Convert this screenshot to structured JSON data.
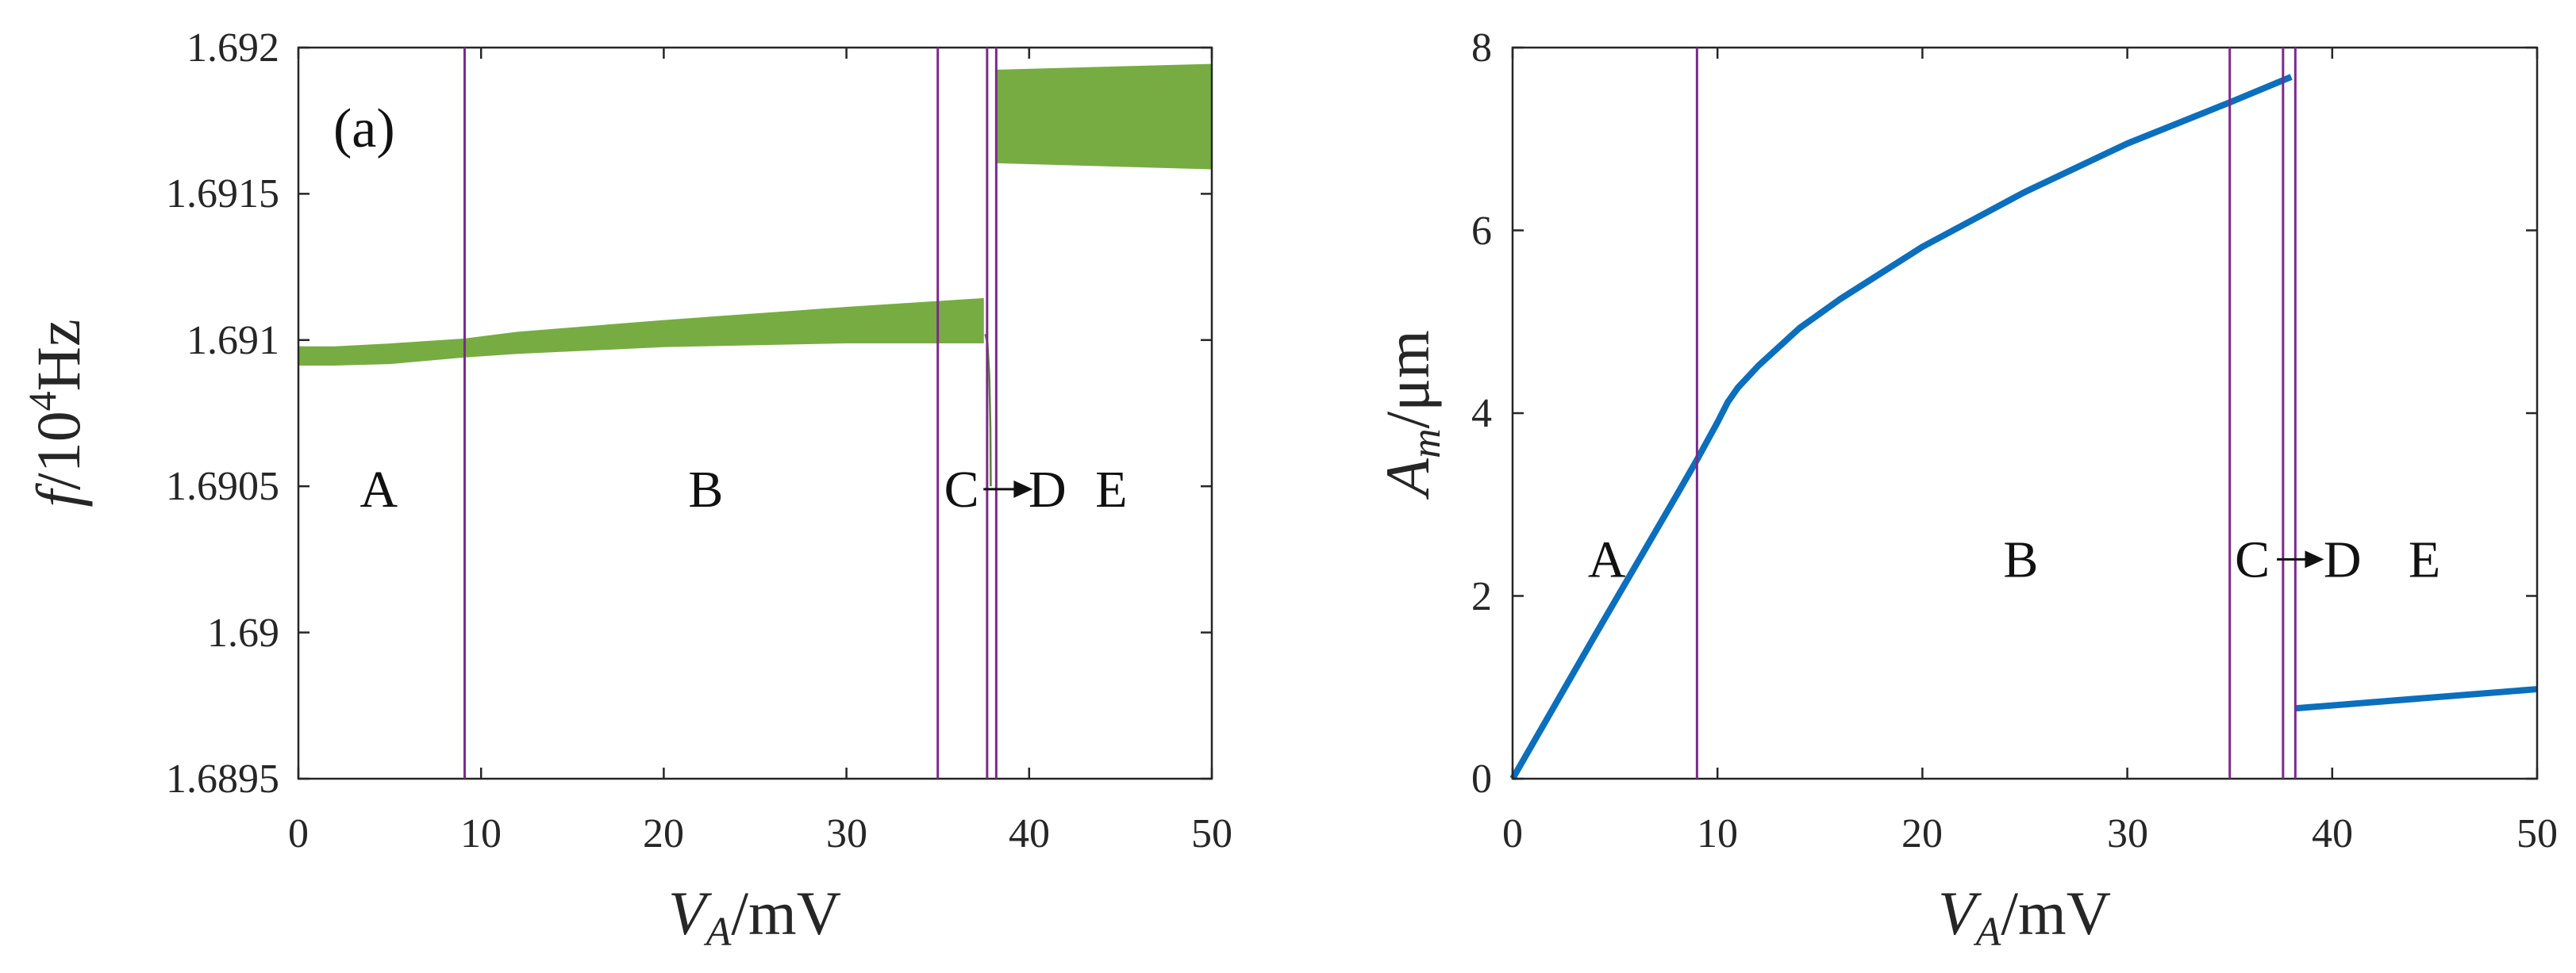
{
  "colors": {
    "band": "#77ac42",
    "curve": "#0b6fbd",
    "boundary": "#7b2a8c",
    "axis": "#262626"
  },
  "chart_data": [
    {
      "type": "area",
      "panel_label": "(a)",
      "xlabel_main": "V",
      "xlabel_sub": "A",
      "xlabel_unit": "/mV",
      "ylabel_main": "f",
      "ylabel_unit": "/10",
      "ylabel_exp": "4",
      "ylabel_tail": "Hz",
      "xlim": [
        0,
        50
      ],
      "ylim": [
        1.6895,
        1.692
      ],
      "xticks": [
        0,
        10,
        20,
        30,
        40,
        50
      ],
      "xtick_labels": [
        "0",
        "10",
        "20",
        "30",
        "40",
        "50"
      ],
      "yticks": [
        1.6895,
        1.69,
        1.6905,
        1.691,
        1.6915,
        1.692
      ],
      "ytick_labels": [
        "1.6895",
        "1.69",
        "1.6905",
        "1.691",
        "1.6915",
        "1.692"
      ],
      "boundaries": [
        9.1,
        35,
        37.7,
        38.2
      ],
      "region_labels": [
        {
          "text": "A",
          "x": 4.4
        },
        {
          "text": "B",
          "x": 22.3
        },
        {
          "text": "C",
          "x": 36.3
        },
        {
          "text": "D",
          "x": 41.0
        },
        {
          "text": "E",
          "x": 44.5
        }
      ],
      "region_label_y": 1.69049,
      "arrow": {
        "from_x": 37.5,
        "to_x": 40.2
      },
      "series": [
        {
          "name": "band-1",
          "x": [
            0,
            2,
            5,
            9.1,
            12,
            20,
            30,
            37.5
          ],
          "upper": [
            1.690977,
            1.690977,
            1.690987,
            1.691004,
            1.691027,
            1.691067,
            1.691112,
            1.691142
          ],
          "lower": [
            1.690914,
            1.690914,
            1.690919,
            1.690942,
            1.690954,
            1.690977,
            1.69099,
            1.69099
          ]
        },
        {
          "name": "band-2",
          "x": [
            38.2,
            50
          ],
          "upper": [
            1.691923,
            1.691943
          ],
          "lower": [
            1.691606,
            1.691585
          ]
        }
      ],
      "drop_line": {
        "x": [
          37.6,
          37.72,
          37.82,
          37.88,
          37.9
        ],
        "y": [
          1.69102,
          1.69099,
          1.69088,
          1.6907,
          1.6905
        ]
      }
    },
    {
      "type": "line",
      "xlabel_main": "V",
      "xlabel_sub": "A",
      "xlabel_unit": "/mV",
      "ylabel_main": "A",
      "ylabel_sub": "m",
      "ylabel_unit": "/μm",
      "xlim": [
        0,
        50
      ],
      "ylim": [
        0,
        8
      ],
      "xticks": [
        0,
        10,
        20,
        30,
        40,
        50
      ],
      "xtick_labels": [
        "0",
        "10",
        "20",
        "30",
        "40",
        "50"
      ],
      "yticks": [
        0,
        2,
        4,
        6,
        8
      ],
      "ytick_labels": [
        "0",
        "2",
        "4",
        "6",
        "8"
      ],
      "boundaries": [
        9.0,
        35,
        37.6,
        38.2
      ],
      "region_labels": [
        {
          "text": "A",
          "x": 4.6
        },
        {
          "text": "B",
          "x": 24.8
        },
        {
          "text": "C",
          "x": 36.1
        },
        {
          "text": "D",
          "x": 40.5
        },
        {
          "text": "E",
          "x": 44.5
        }
      ],
      "region_label_y": 2.4,
      "arrow": {
        "from_x": 37.3,
        "to_x": 39.6
      },
      "series": [
        {
          "name": "branch-1",
          "x": [
            0,
            2,
            4,
            6,
            8,
            9,
            10,
            10.5,
            11,
            12,
            14,
            16,
            20,
            25,
            30,
            35,
            38
          ],
          "y": [
            0,
            0.78,
            1.56,
            2.33,
            3.1,
            3.49,
            3.9,
            4.12,
            4.28,
            4.52,
            4.93,
            5.25,
            5.82,
            6.42,
            6.95,
            7.4,
            7.68
          ]
        },
        {
          "name": "branch-2",
          "x": [
            38.2,
            50
          ],
          "y": [
            0.77,
            0.98
          ]
        }
      ]
    }
  ]
}
